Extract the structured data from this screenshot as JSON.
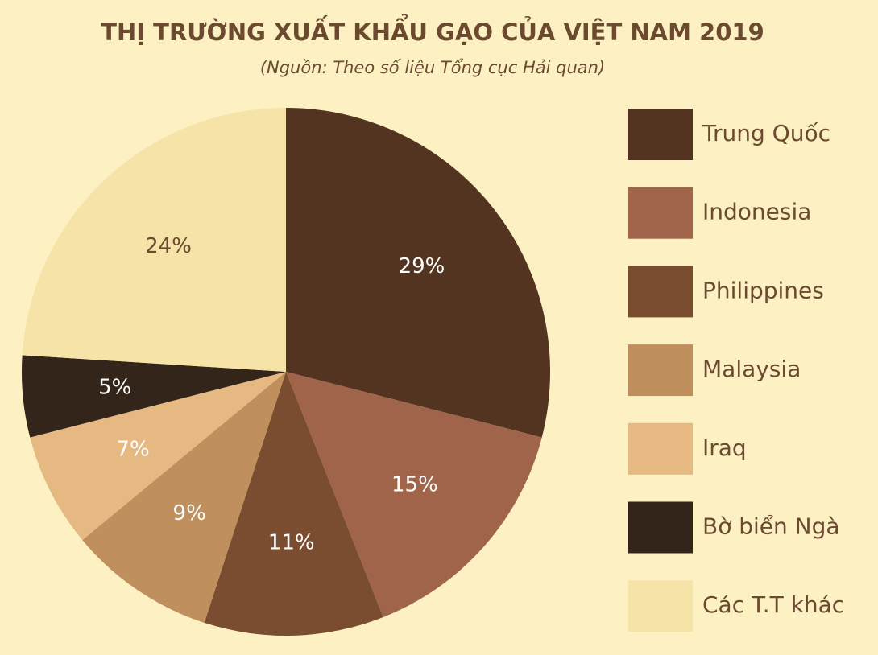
{
  "chart_data": {
    "type": "pie",
    "title": "THỊ TRƯỜNG XUẤT KHẨU GẠO CỦA VIỆT NAM 2019",
    "subtitle": "(Nguồn: Theo số liệu Tổng cục Hải quan)",
    "categories": [
      "Trung Quốc",
      "Indonesia",
      "Philippines",
      "Malaysia",
      "Iraq",
      "Bờ biển Ngà",
      "Các T.T khác"
    ],
    "values": [
      29,
      15,
      11,
      9,
      7,
      5,
      24
    ],
    "value_labels": [
      "29%",
      "15%",
      "11%",
      "9%",
      "7%",
      "5%",
      "24%"
    ],
    "colors": [
      "#523420",
      "#a0644a",
      "#7a4c30",
      "#c08f5e",
      "#e6b882",
      "#33251a",
      "#f6e3a8"
    ],
    "legend": "right"
  }
}
